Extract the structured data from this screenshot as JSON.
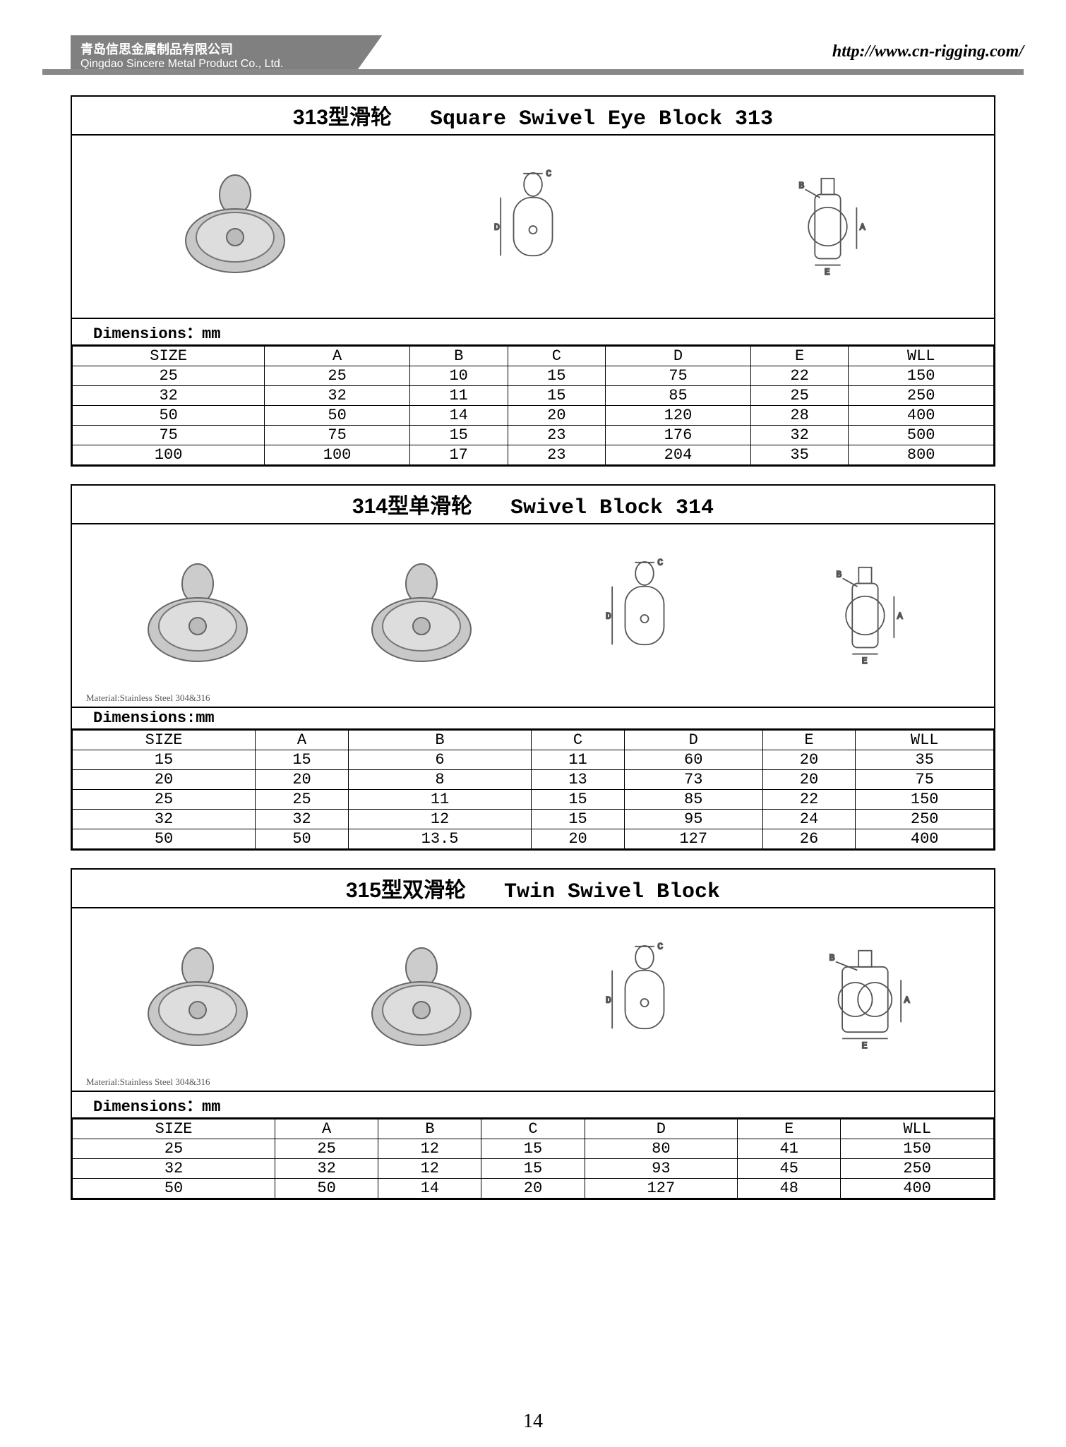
{
  "header": {
    "company_cn": "青岛信思金属制品有限公司",
    "company_en": "Qingdao  Sincere Metal Product Co.,  Ltd.",
    "url": "http://www.cn-rigging.com/"
  },
  "page_number": "14",
  "products": [
    {
      "title_cn": "313型滑轮",
      "title_en": "Square Swivel Eye Block 313",
      "dim_label": "Dimensions：mm",
      "material_caption": "",
      "image_count": 3,
      "columns": [
        "SIZE",
        "A",
        "B",
        "C",
        "D",
        "E",
        "WLL"
      ],
      "rows": [
        [
          "25",
          "25",
          "10",
          "15",
          "75",
          "22",
          "150"
        ],
        [
          "32",
          "32",
          "11",
          "15",
          "85",
          "25",
          "250"
        ],
        [
          "50",
          "50",
          "14",
          "20",
          "120",
          "28",
          "400"
        ],
        [
          "75",
          "75",
          "15",
          "23",
          "176",
          "32",
          "500"
        ],
        [
          "100",
          "100",
          "17",
          "23",
          "204",
          "35",
          "800"
        ]
      ]
    },
    {
      "title_cn": "314型单滑轮",
      "title_en": "Swivel Block 314",
      "dim_label": "Dimensions:mm",
      "material_caption": "Material:Stainless Steel 304&316",
      "image_count": 4,
      "columns": [
        "SIZE",
        "A",
        "B",
        "C",
        "D",
        "E",
        "WLL"
      ],
      "rows": [
        [
          "15",
          "15",
          "6",
          "11",
          "60",
          "20",
          "35"
        ],
        [
          "20",
          "20",
          "8",
          "13",
          "73",
          "20",
          "75"
        ],
        [
          "25",
          "25",
          "11",
          "15",
          "85",
          "22",
          "150"
        ],
        [
          "32",
          "32",
          "12",
          "15",
          "95",
          "24",
          "250"
        ],
        [
          "50",
          "50",
          "13.5",
          "20",
          "127",
          "26",
          "400"
        ]
      ]
    },
    {
      "title_cn": "315型双滑轮",
      "title_en": "Twin Swivel Block",
      "dim_label": "Dimensions：mm",
      "material_caption": "Material:Stainless Steel 304&316",
      "image_count": 4,
      "columns": [
        "SIZE",
        "A",
        "B",
        "C",
        "D",
        "E",
        "WLL"
      ],
      "rows": [
        [
          "25",
          "25",
          "12",
          "15",
          "80",
          "41",
          "150"
        ],
        [
          "32",
          "32",
          "12",
          "15",
          "93",
          "45",
          "250"
        ],
        [
          "50",
          "50",
          "14",
          "20",
          "127",
          "48",
          "400"
        ]
      ]
    }
  ]
}
